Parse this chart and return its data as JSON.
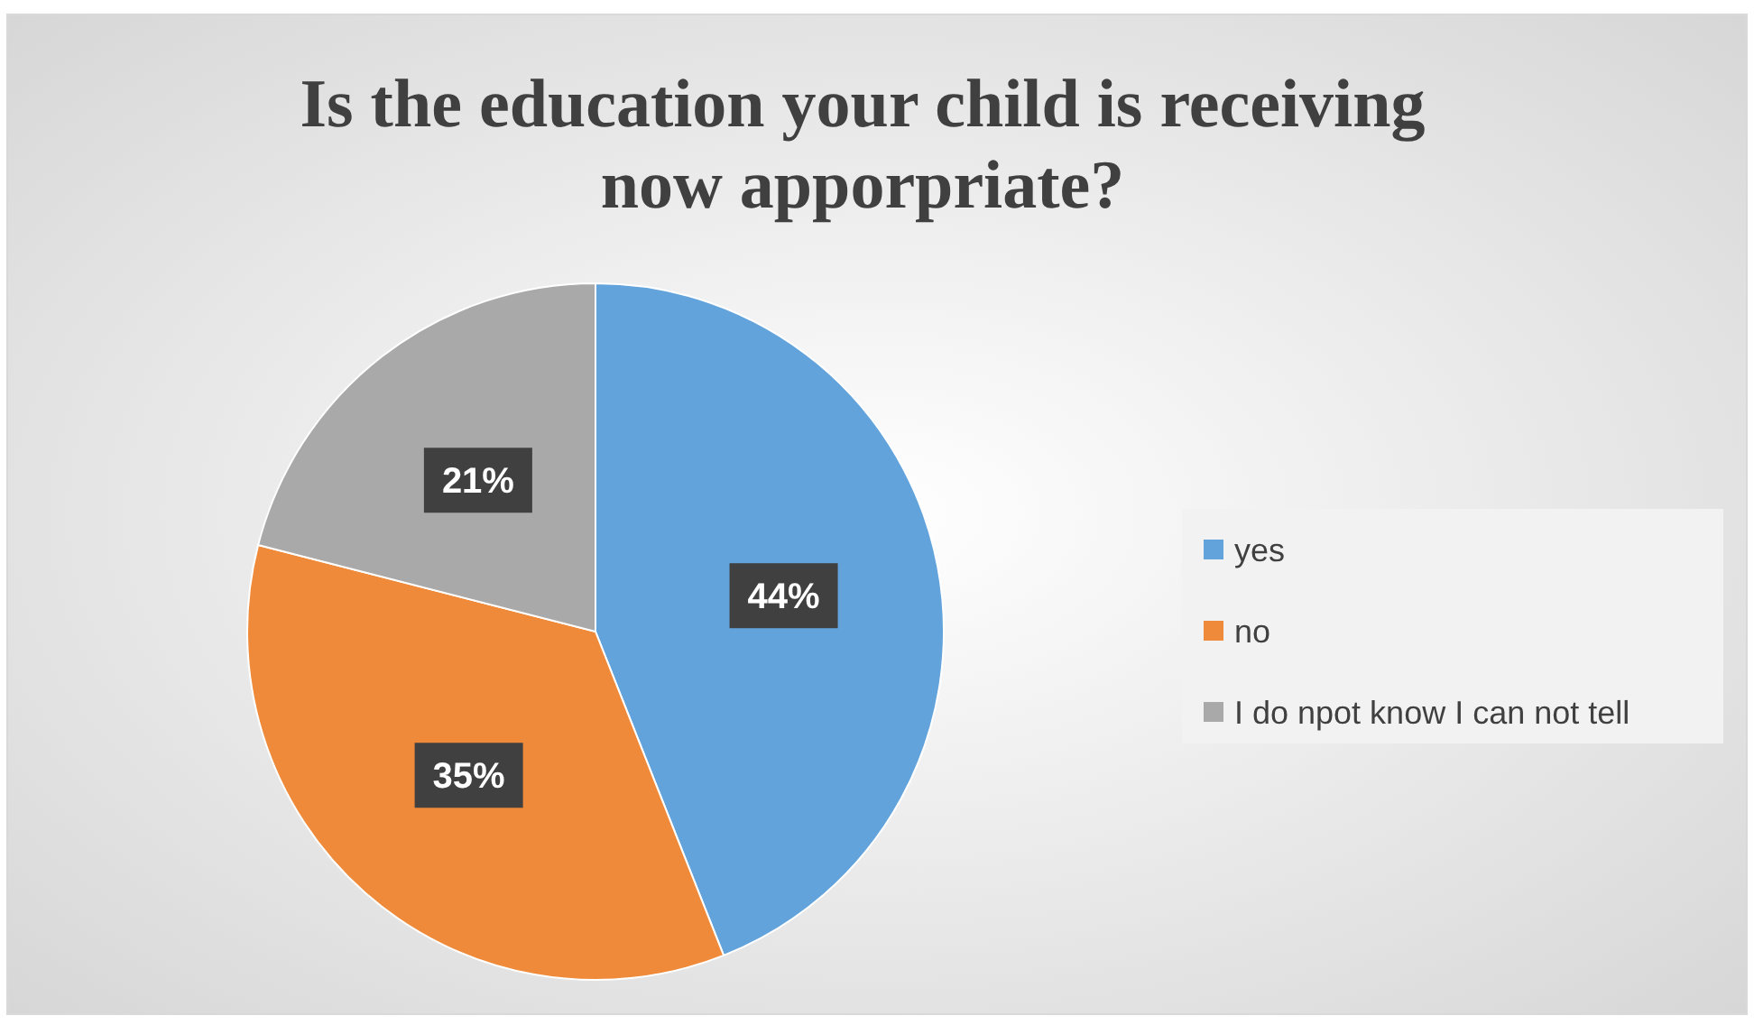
{
  "chart_data": {
    "type": "pie",
    "title": "Is the education your child is receiving now apporpriate?",
    "categories": [
      "yes",
      "no",
      "I do npot know I can not tell"
    ],
    "values": [
      44,
      35,
      21
    ],
    "colors": [
      "#62a3dc",
      "#ef8a3a",
      "#a9a9a9"
    ],
    "value_labels": [
      "44%",
      "35%",
      "21%"
    ],
    "legend": "right"
  }
}
